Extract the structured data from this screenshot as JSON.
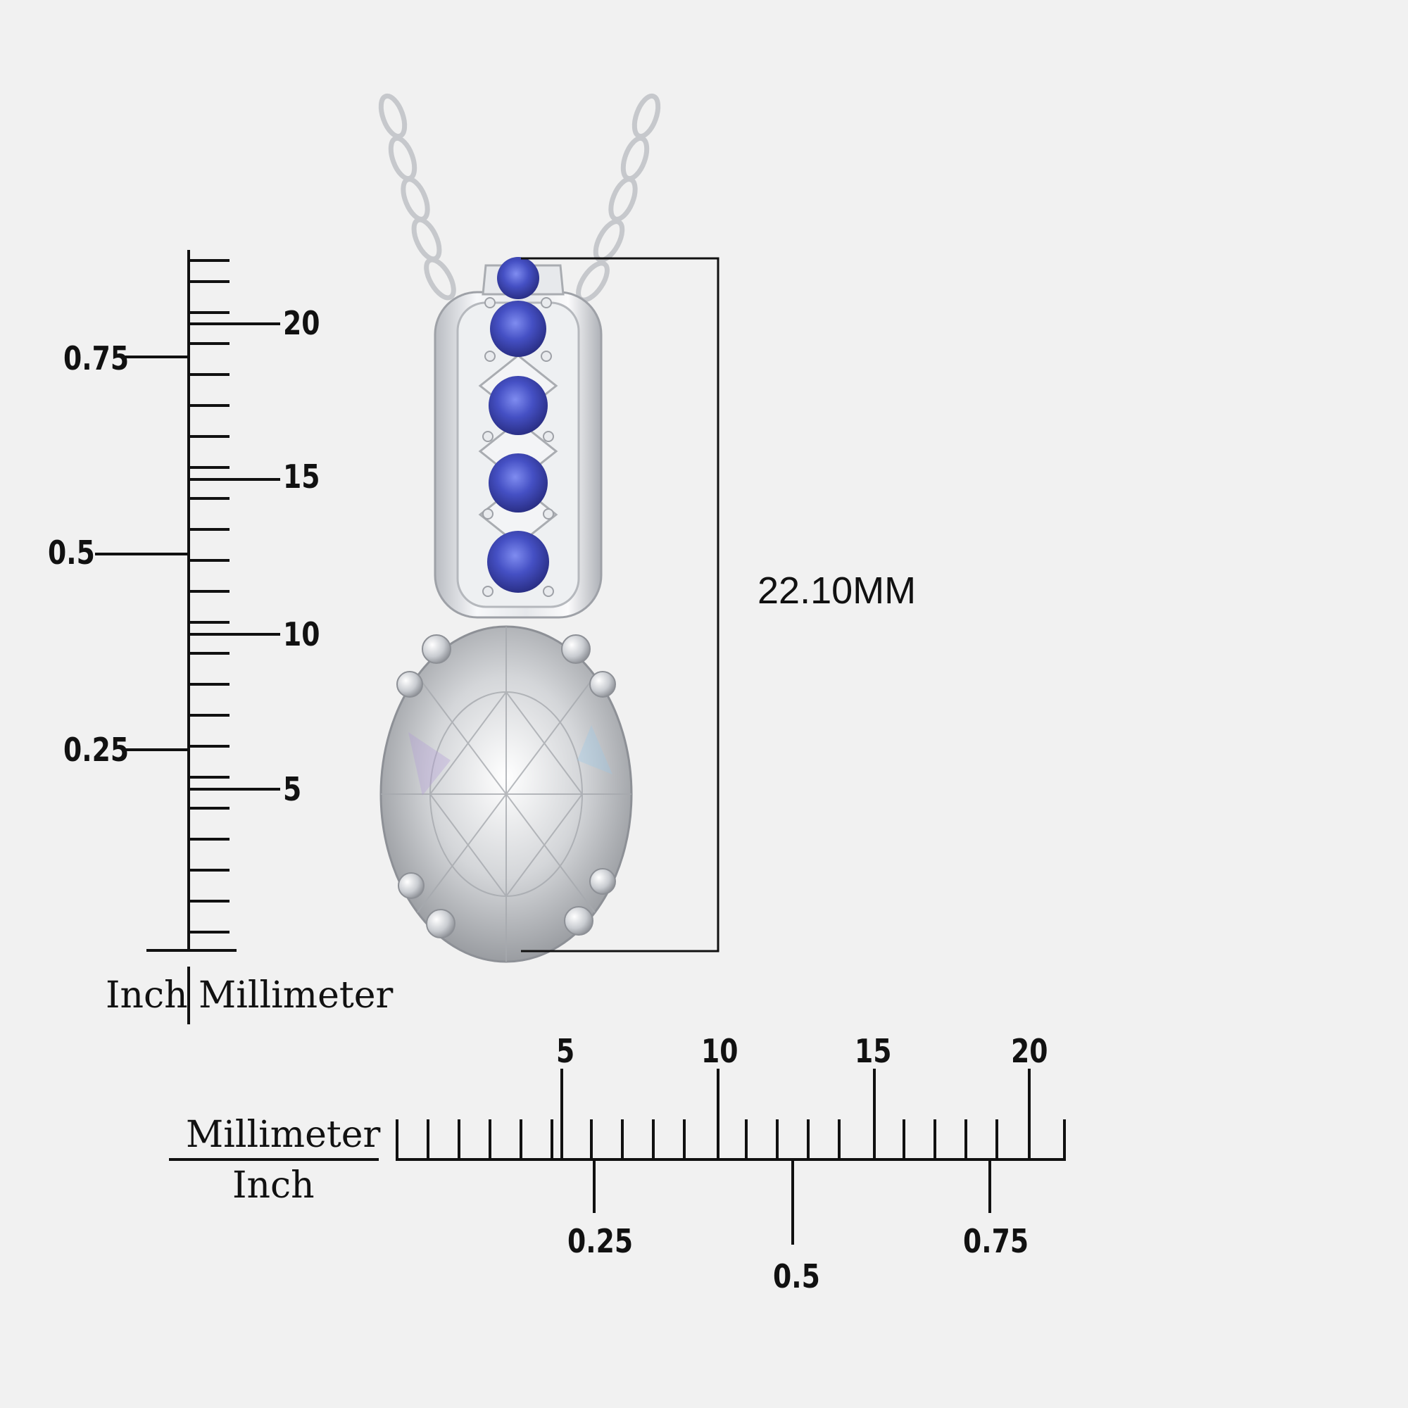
{
  "vertical_ruler": {
    "mm_labels": [
      "5",
      "10",
      "15",
      "20"
    ],
    "inch_labels": [
      "0.25",
      "0.5",
      "0.75"
    ],
    "unit_left": "Inch",
    "unit_right": "Millimeter"
  },
  "horizontal_ruler": {
    "mm_labels": [
      "5",
      "10",
      "15",
      "20"
    ],
    "inch_labels": [
      "0.25",
      "0.5",
      "0.75"
    ],
    "unit_top": "Millimeter",
    "unit_bottom": "Inch"
  },
  "dimension": {
    "label": "22.10MM"
  },
  "colors": {
    "background": "#f1f1f1",
    "metal": "#d8dade",
    "sapphire": "#4a55c8",
    "diamond": "#c9cbce"
  }
}
